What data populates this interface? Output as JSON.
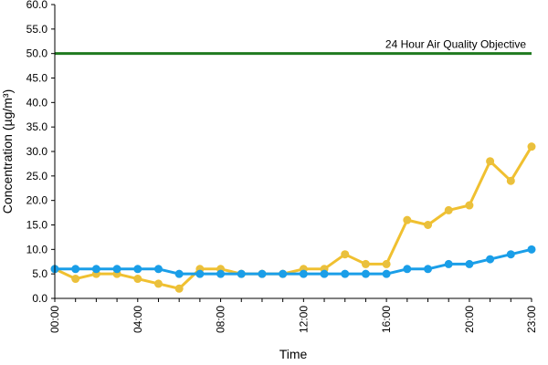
{
  "chart_data": {
    "type": "line",
    "title": "",
    "xlabel": "Time",
    "ylabel": "Concentration (µg/m³)",
    "ylim": [
      0,
      60
    ],
    "y_ticks": [
      "0.0",
      "5.0",
      "10.0",
      "15.0",
      "20.0",
      "25.0",
      "30.0",
      "35.0",
      "40.0",
      "45.0",
      "50.0",
      "55.0",
      "60.0"
    ],
    "x": [
      0,
      1,
      2,
      3,
      4,
      5,
      6,
      7,
      8,
      9,
      10,
      11,
      12,
      13,
      14,
      15,
      16,
      17,
      18,
      19,
      20,
      21,
      22,
      23
    ],
    "x_ticks": [
      {
        "x": 0,
        "label": "00:00"
      },
      {
        "x": 4,
        "label": "04:00"
      },
      {
        "x": 8,
        "label": "08:00"
      },
      {
        "x": 12,
        "label": "12:00"
      },
      {
        "x": 16,
        "label": "16:00"
      },
      {
        "x": 20,
        "label": "20:00"
      },
      {
        "x": 23,
        "label": "23:00"
      }
    ],
    "grid": false,
    "legend": "none",
    "series": [
      {
        "color": "#f0c030",
        "marker_fill": "#e8c040",
        "values": [
          6,
          4,
          5,
          5,
          4,
          3,
          2,
          6,
          6,
          5,
          5,
          5,
          6,
          6,
          9,
          7,
          7,
          16,
          15,
          18,
          19,
          28,
          24,
          31
        ]
      },
      {
        "color": "#1a9ee8",
        "marker_fill": "#1a9ee8",
        "values": [
          6,
          6,
          6,
          6,
          6,
          6,
          5,
          5,
          5,
          5,
          5,
          5,
          5,
          5,
          5,
          5,
          5,
          6,
          6,
          7,
          7,
          8,
          9,
          10
        ]
      }
    ],
    "reference_lines": [
      {
        "y": 50,
        "label": "24 Hour Air Quality Objective",
        "color": "#1f7a1f"
      }
    ]
  }
}
